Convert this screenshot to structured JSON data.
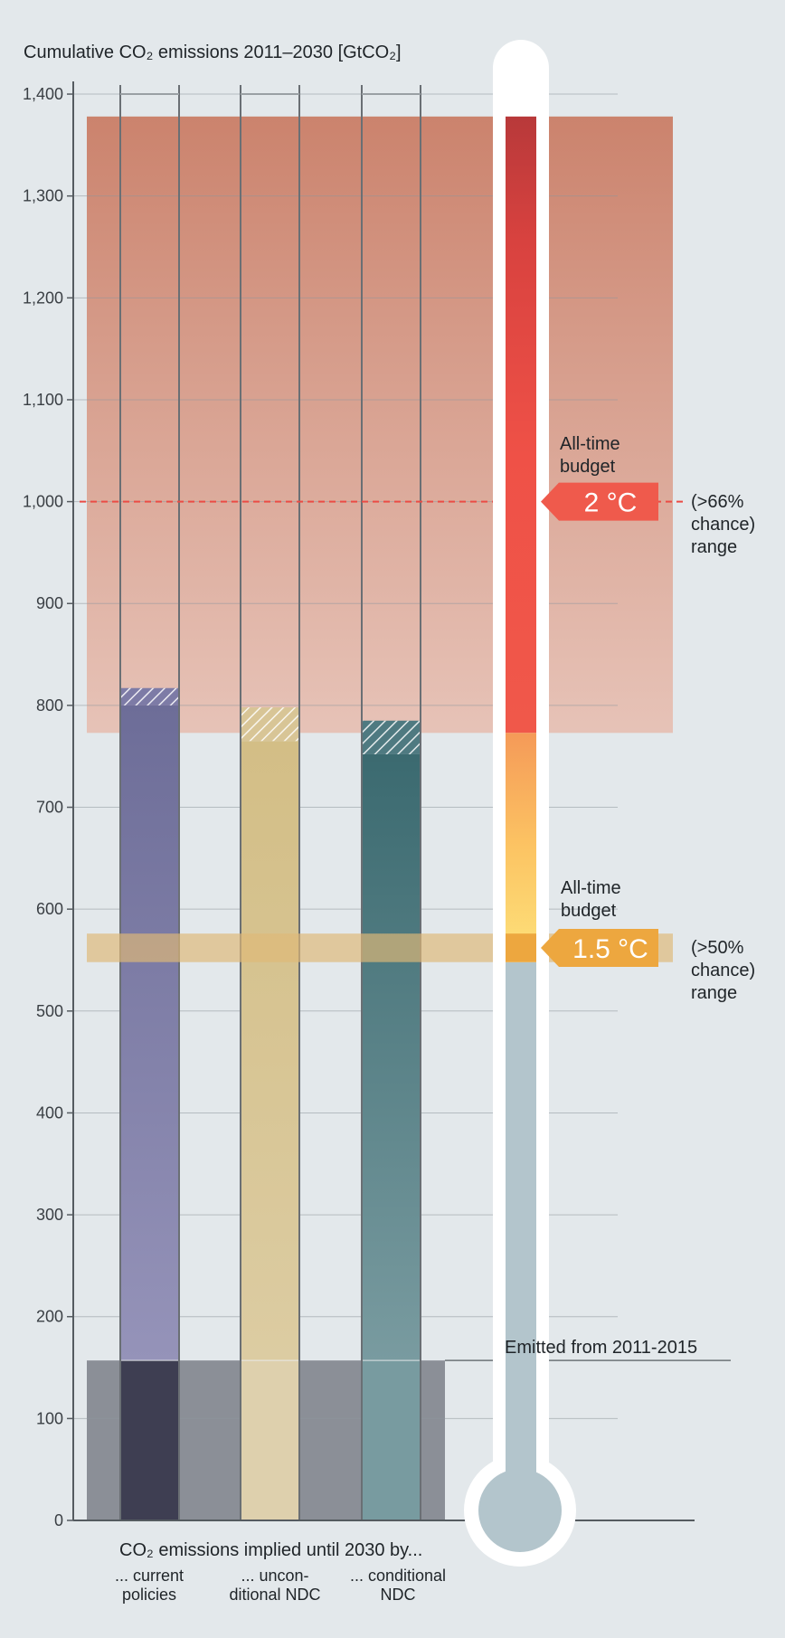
{
  "chart_data": {
    "type": "bar",
    "title": "Cumulative CO₂ emissions 2011–2030 [GtCO₂]",
    "xlabel": "CO₂ emissions implied until 2030 by...",
    "ylim": [
      0,
      1400
    ],
    "yticks": [
      0,
      100,
      200,
      300,
      400,
      500,
      600,
      700,
      800,
      900,
      1000,
      1100,
      1200,
      1300,
      1400
    ],
    "ytick_labels": [
      "0",
      "100",
      "200",
      "300",
      "400",
      "500",
      "600",
      "700",
      "800",
      "900",
      "1,000",
      "1,100",
      "1,200",
      "1,300",
      "1,400"
    ],
    "grid": true,
    "categories": [
      {
        "lines": [
          "... current",
          "policies"
        ],
        "low": 800,
        "high": 817,
        "color": "#7d7ba6",
        "base_color": "#3e3e52"
      },
      {
        "lines": [
          "... uncon-",
          "ditional NDC"
        ],
        "low": 765,
        "high": 798,
        "color": "#d8c596",
        "base_color": "#ded0ad"
      },
      {
        "lines": [
          "... conditional",
          "NDC"
        ],
        "low": 752,
        "high": 785,
        "color": "#4f7a81",
        "base_color": "#789ba0"
      }
    ],
    "emitted_2011_2015": {
      "value": 157,
      "label": "Emitted from 2011-2015"
    },
    "budget_2c": {
      "low": 773,
      "high": 1378,
      "central": 1000,
      "badge": "2 °C",
      "label": [
        "All-time",
        "budget"
      ],
      "range_label": [
        "(>66%",
        "chance)",
        "range"
      ]
    },
    "budget_1_5c": {
      "low": 548,
      "high": 576,
      "central": 562,
      "badge": "1.5 °C",
      "label": [
        "All-time",
        "budget"
      ],
      "range_label": [
        "(>50%",
        "chance)",
        "range"
      ]
    },
    "thermometer": {
      "top_value": 1378,
      "red_to": 773,
      "orange_to": 548
    }
  }
}
